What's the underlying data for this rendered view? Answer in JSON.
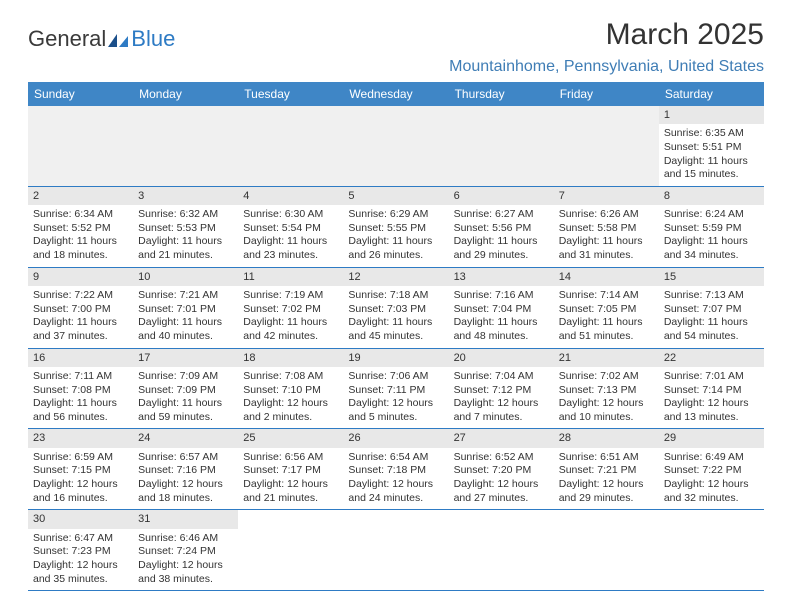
{
  "logo": {
    "word1": "General",
    "word2": "Blue"
  },
  "title": "March 2025",
  "location": "Mountainhome, Pennsylvania, United States",
  "colors": {
    "header_bg": "#3f86c6",
    "header_text": "#ffffff",
    "accent": "#2e7bc4",
    "daynum_bg": "#e8e8e8",
    "blank_bg": "#f0f0f0"
  },
  "day_headers": [
    "Sunday",
    "Monday",
    "Tuesday",
    "Wednesday",
    "Thursday",
    "Friday",
    "Saturday"
  ],
  "weeks": [
    [
      null,
      null,
      null,
      null,
      null,
      null,
      {
        "n": "1",
        "sunrise": "Sunrise: 6:35 AM",
        "sunset": "Sunset: 5:51 PM",
        "daylight": "Daylight: 11 hours and 15 minutes."
      }
    ],
    [
      {
        "n": "2",
        "sunrise": "Sunrise: 6:34 AM",
        "sunset": "Sunset: 5:52 PM",
        "daylight": "Daylight: 11 hours and 18 minutes."
      },
      {
        "n": "3",
        "sunrise": "Sunrise: 6:32 AM",
        "sunset": "Sunset: 5:53 PM",
        "daylight": "Daylight: 11 hours and 21 minutes."
      },
      {
        "n": "4",
        "sunrise": "Sunrise: 6:30 AM",
        "sunset": "Sunset: 5:54 PM",
        "daylight": "Daylight: 11 hours and 23 minutes."
      },
      {
        "n": "5",
        "sunrise": "Sunrise: 6:29 AM",
        "sunset": "Sunset: 5:55 PM",
        "daylight": "Daylight: 11 hours and 26 minutes."
      },
      {
        "n": "6",
        "sunrise": "Sunrise: 6:27 AM",
        "sunset": "Sunset: 5:56 PM",
        "daylight": "Daylight: 11 hours and 29 minutes."
      },
      {
        "n": "7",
        "sunrise": "Sunrise: 6:26 AM",
        "sunset": "Sunset: 5:58 PM",
        "daylight": "Daylight: 11 hours and 31 minutes."
      },
      {
        "n": "8",
        "sunrise": "Sunrise: 6:24 AM",
        "sunset": "Sunset: 5:59 PM",
        "daylight": "Daylight: 11 hours and 34 minutes."
      }
    ],
    [
      {
        "n": "9",
        "sunrise": "Sunrise: 7:22 AM",
        "sunset": "Sunset: 7:00 PM",
        "daylight": "Daylight: 11 hours and 37 minutes."
      },
      {
        "n": "10",
        "sunrise": "Sunrise: 7:21 AM",
        "sunset": "Sunset: 7:01 PM",
        "daylight": "Daylight: 11 hours and 40 minutes."
      },
      {
        "n": "11",
        "sunrise": "Sunrise: 7:19 AM",
        "sunset": "Sunset: 7:02 PM",
        "daylight": "Daylight: 11 hours and 42 minutes."
      },
      {
        "n": "12",
        "sunrise": "Sunrise: 7:18 AM",
        "sunset": "Sunset: 7:03 PM",
        "daylight": "Daylight: 11 hours and 45 minutes."
      },
      {
        "n": "13",
        "sunrise": "Sunrise: 7:16 AM",
        "sunset": "Sunset: 7:04 PM",
        "daylight": "Daylight: 11 hours and 48 minutes."
      },
      {
        "n": "14",
        "sunrise": "Sunrise: 7:14 AM",
        "sunset": "Sunset: 7:05 PM",
        "daylight": "Daylight: 11 hours and 51 minutes."
      },
      {
        "n": "15",
        "sunrise": "Sunrise: 7:13 AM",
        "sunset": "Sunset: 7:07 PM",
        "daylight": "Daylight: 11 hours and 54 minutes."
      }
    ],
    [
      {
        "n": "16",
        "sunrise": "Sunrise: 7:11 AM",
        "sunset": "Sunset: 7:08 PM",
        "daylight": "Daylight: 11 hours and 56 minutes."
      },
      {
        "n": "17",
        "sunrise": "Sunrise: 7:09 AM",
        "sunset": "Sunset: 7:09 PM",
        "daylight": "Daylight: 11 hours and 59 minutes."
      },
      {
        "n": "18",
        "sunrise": "Sunrise: 7:08 AM",
        "sunset": "Sunset: 7:10 PM",
        "daylight": "Daylight: 12 hours and 2 minutes."
      },
      {
        "n": "19",
        "sunrise": "Sunrise: 7:06 AM",
        "sunset": "Sunset: 7:11 PM",
        "daylight": "Daylight: 12 hours and 5 minutes."
      },
      {
        "n": "20",
        "sunrise": "Sunrise: 7:04 AM",
        "sunset": "Sunset: 7:12 PM",
        "daylight": "Daylight: 12 hours and 7 minutes."
      },
      {
        "n": "21",
        "sunrise": "Sunrise: 7:02 AM",
        "sunset": "Sunset: 7:13 PM",
        "daylight": "Daylight: 12 hours and 10 minutes."
      },
      {
        "n": "22",
        "sunrise": "Sunrise: 7:01 AM",
        "sunset": "Sunset: 7:14 PM",
        "daylight": "Daylight: 12 hours and 13 minutes."
      }
    ],
    [
      {
        "n": "23",
        "sunrise": "Sunrise: 6:59 AM",
        "sunset": "Sunset: 7:15 PM",
        "daylight": "Daylight: 12 hours and 16 minutes."
      },
      {
        "n": "24",
        "sunrise": "Sunrise: 6:57 AM",
        "sunset": "Sunset: 7:16 PM",
        "daylight": "Daylight: 12 hours and 18 minutes."
      },
      {
        "n": "25",
        "sunrise": "Sunrise: 6:56 AM",
        "sunset": "Sunset: 7:17 PM",
        "daylight": "Daylight: 12 hours and 21 minutes."
      },
      {
        "n": "26",
        "sunrise": "Sunrise: 6:54 AM",
        "sunset": "Sunset: 7:18 PM",
        "daylight": "Daylight: 12 hours and 24 minutes."
      },
      {
        "n": "27",
        "sunrise": "Sunrise: 6:52 AM",
        "sunset": "Sunset: 7:20 PM",
        "daylight": "Daylight: 12 hours and 27 minutes."
      },
      {
        "n": "28",
        "sunrise": "Sunrise: 6:51 AM",
        "sunset": "Sunset: 7:21 PM",
        "daylight": "Daylight: 12 hours and 29 minutes."
      },
      {
        "n": "29",
        "sunrise": "Sunrise: 6:49 AM",
        "sunset": "Sunset: 7:22 PM",
        "daylight": "Daylight: 12 hours and 32 minutes."
      }
    ],
    [
      {
        "n": "30",
        "sunrise": "Sunrise: 6:47 AM",
        "sunset": "Sunset: 7:23 PM",
        "daylight": "Daylight: 12 hours and 35 minutes."
      },
      {
        "n": "31",
        "sunrise": "Sunrise: 6:46 AM",
        "sunset": "Sunset: 7:24 PM",
        "daylight": "Daylight: 12 hours and 38 minutes."
      },
      null,
      null,
      null,
      null,
      null
    ]
  ]
}
